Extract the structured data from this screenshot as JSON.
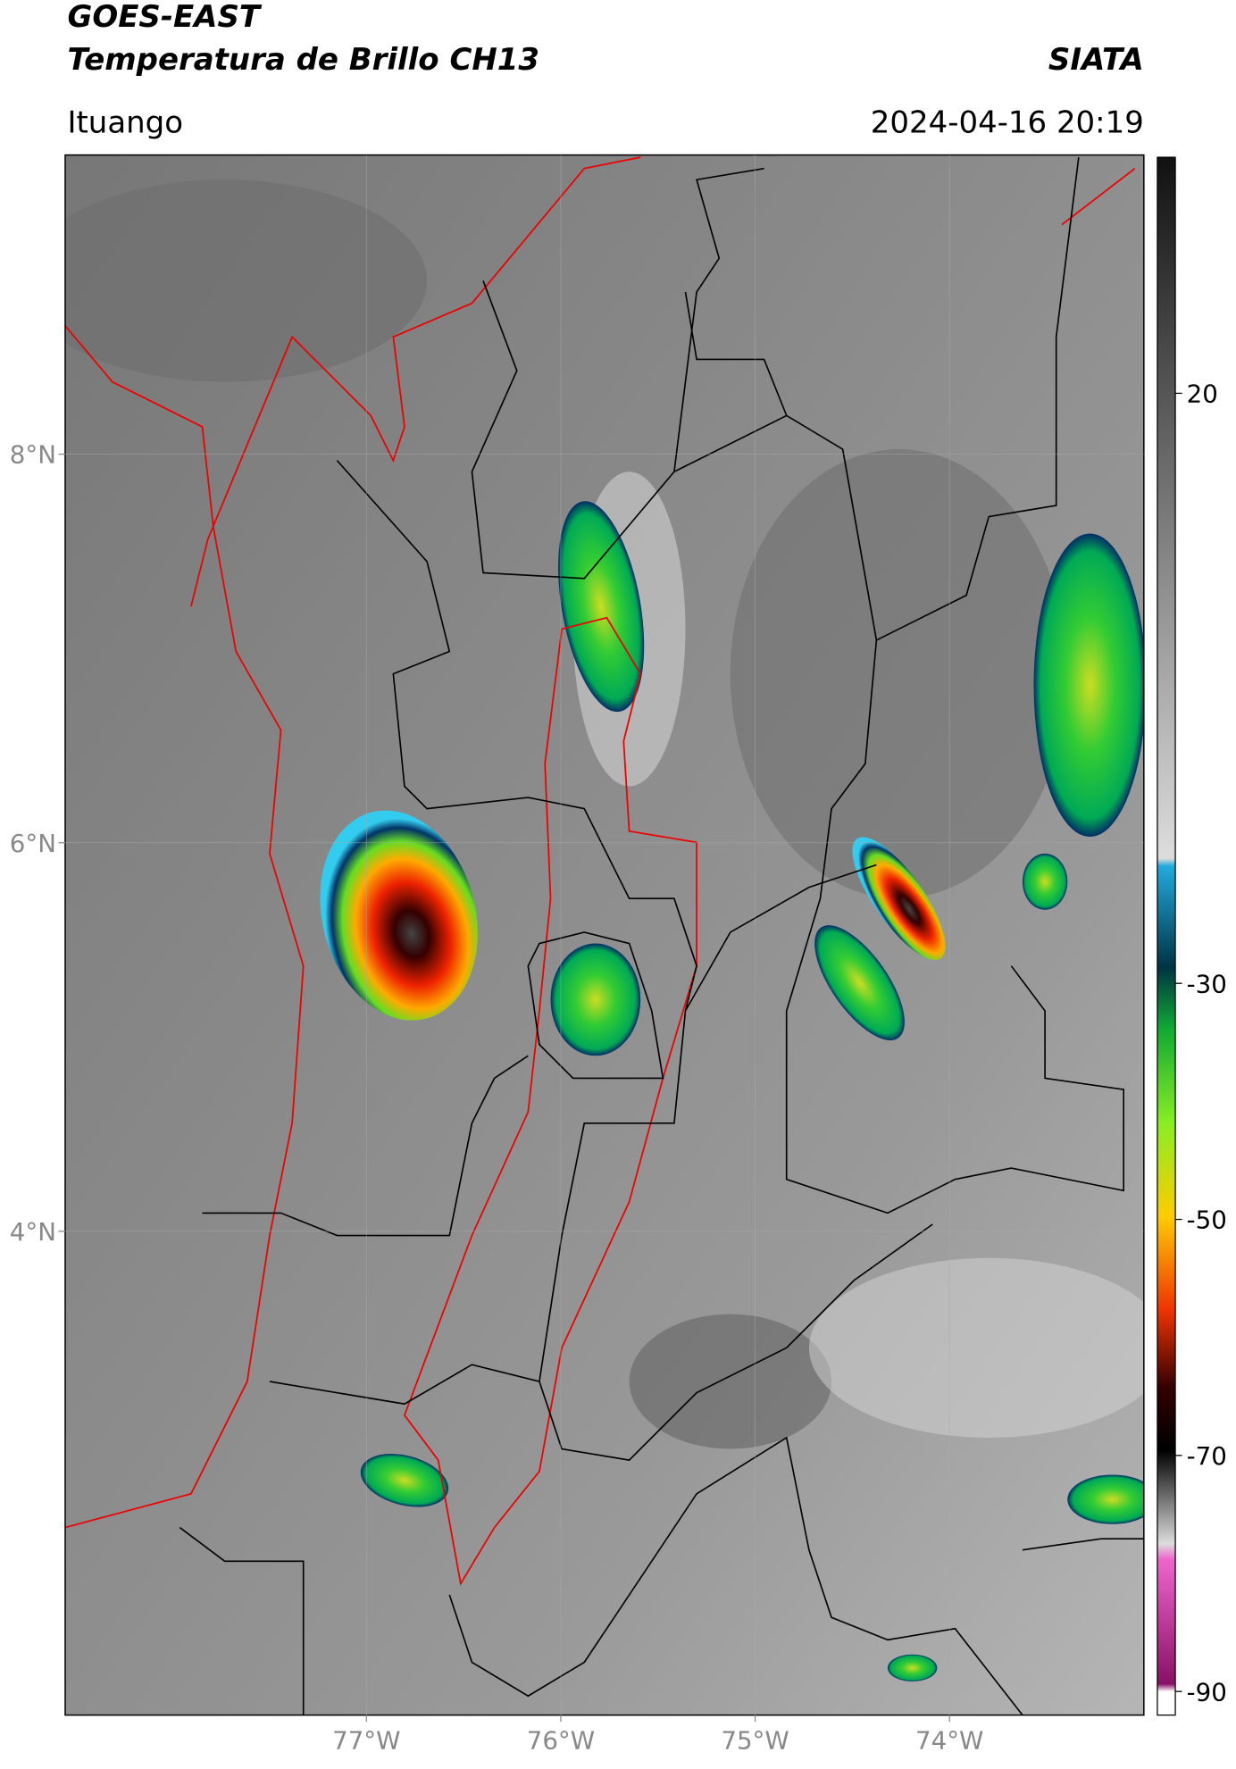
{
  "header": {
    "title": "GOES-EAST",
    "subtitle": "Temperatura de Brillo CH13",
    "source": "SIATA",
    "location": "Ituango",
    "datetime": "2024-04-16 20:19"
  },
  "map": {
    "xlim": [
      -78.55,
      -73.0
    ],
    "ylim": [
      1.51,
      9.54
    ],
    "xticks": [
      {
        "value": -77,
        "label": "77°W"
      },
      {
        "value": -76,
        "label": "76°W"
      },
      {
        "value": -75,
        "label": "75°W"
      },
      {
        "value": -74,
        "label": "74°W"
      }
    ],
    "yticks": [
      {
        "value": 8,
        "label": "8°N"
      },
      {
        "value": 6,
        "label": "6°N"
      },
      {
        "value": 4,
        "label": "4°N"
      }
    ],
    "grid": true
  },
  "colorbar": {
    "lim": [
      -92,
      40
    ],
    "ticks": [
      20,
      -30,
      -50,
      -70,
      -90
    ]
  }
}
